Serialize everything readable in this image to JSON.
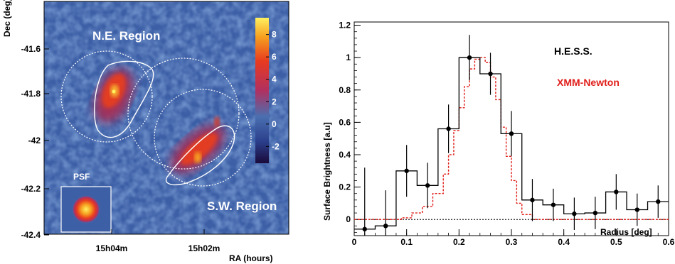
{
  "chart_data": [
    {
      "type": "heatmap",
      "xlabel": "RA (hours)",
      "ylabel": "Dec (deg)",
      "x_ticks": [
        "15h04m",
        "15h02m"
      ],
      "y_ticks": [
        "-41.6",
        "-41.8",
        "-42",
        "-42.2",
        "-42.4"
      ],
      "colorbar": {
        "ticks": [
          8,
          6,
          4,
          2,
          0,
          -2
        ],
        "range": [
          -3.5,
          9.5
        ],
        "colors": [
          "#1a0a3a",
          "#2b3f8c",
          "#4a6fb0",
          "#b03060",
          "#e83a20",
          "#f6a020",
          "#fff060"
        ]
      },
      "regions": [
        "N.E. Region",
        "S.W. Region"
      ],
      "inset_label": "PSF"
    },
    {
      "type": "line",
      "xlabel": "Radius [deg]",
      "ylabel": "Surface Brightness [a.u]",
      "xlim": [
        0,
        0.6
      ],
      "ylim": [
        -0.1,
        1.22
      ],
      "x_ticks": [
        "0",
        "0.1",
        "0.2",
        "0.3",
        "0.4",
        "0.5",
        "0.6"
      ],
      "y_ticks": [
        "0",
        "0.2",
        "0.4",
        "0.6",
        "0.8",
        "1",
        "1.2"
      ],
      "legend": [
        {
          "label": "H.E.S.S.",
          "color": "#000000"
        },
        {
          "label": "XMM-Newton",
          "color": "#e0201c"
        }
      ],
      "hess": {
        "x": [
          0.02,
          0.06,
          0.1,
          0.14,
          0.18,
          0.22,
          0.26,
          0.3,
          0.34,
          0.38,
          0.42,
          0.46,
          0.5,
          0.54,
          0.58
        ],
        "y": [
          -0.06,
          -0.04,
          0.3,
          0.21,
          0.56,
          1.0,
          0.9,
          0.53,
          0.12,
          0.09,
          0.035,
          0.04,
          0.17,
          0.06,
          0.11
        ],
        "err": [
          0.38,
          0.22,
          0.16,
          0.14,
          0.15,
          0.14,
          0.13,
          0.14,
          0.13,
          0.1,
          0.1,
          0.1,
          0.11,
          0.1,
          0.1
        ]
      },
      "xmm": {
        "x": [
          0.0,
          0.05,
          0.09,
          0.11,
          0.13,
          0.15,
          0.17,
          0.18,
          0.19,
          0.2,
          0.21,
          0.22,
          0.23,
          0.24,
          0.25,
          0.26,
          0.27,
          0.28,
          0.29,
          0.3,
          0.31,
          0.32,
          0.34,
          0.6
        ],
        "y": [
          0.0,
          0.0,
          0.01,
          0.04,
          0.08,
          0.16,
          0.28,
          0.4,
          0.55,
          0.69,
          0.82,
          0.93,
          0.99,
          1.0,
          0.97,
          0.88,
          0.74,
          0.57,
          0.39,
          0.24,
          0.1,
          0.03,
          0.0,
          0.0
        ]
      },
      "baseline_y": 0
    }
  ]
}
